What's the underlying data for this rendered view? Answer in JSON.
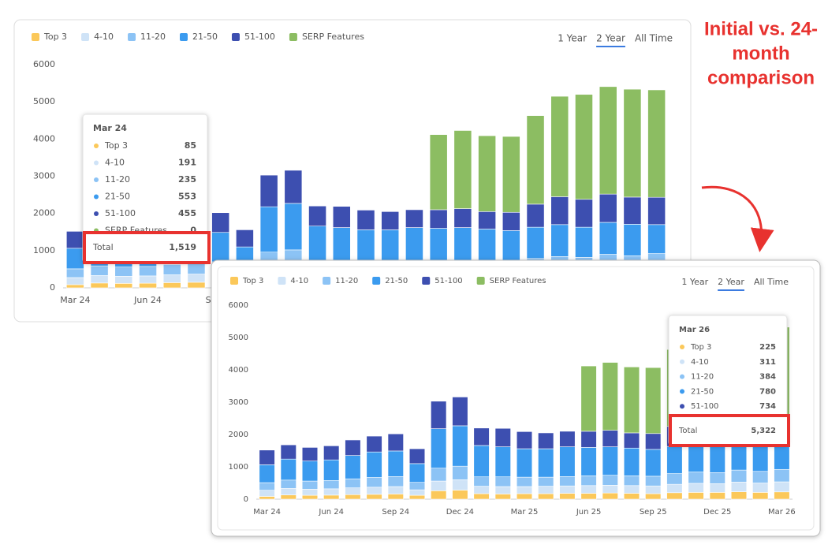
{
  "annotation": {
    "lines": [
      "Initial vs. 24-",
      "month",
      "comparison"
    ]
  },
  "chart_data": [
    {
      "type": "stacked-bar",
      "range_options": [
        "1 Year",
        "2 Year",
        "All Time"
      ],
      "selected_range": "2 Year",
      "categories": [
        "Mar 24",
        null,
        null,
        "Jun 24",
        null,
        null,
        "Sep 24",
        null,
        null,
        "Dec 24",
        null,
        null,
        "Mar 25",
        null,
        null,
        "Jun 25",
        null,
        null,
        "Sep 25",
        null,
        null,
        "Dec 25",
        null,
        null,
        "Mar 26"
      ],
      "series": [
        {
          "name": "Top 3",
          "color": "#fbc85a",
          "values": [
            85,
            130,
            120,
            125,
            140,
            150,
            160,
            120,
            260,
            280,
            170,
            160,
            170,
            170,
            180,
            180,
            190,
            180,
            170,
            200,
            210,
            210,
            230,
            210,
            225
          ]
        },
        {
          "name": "4-10",
          "color": "#cfe3f7",
          "values": [
            191,
            200,
            190,
            195,
            210,
            220,
            230,
            170,
            300,
            320,
            230,
            230,
            220,
            230,
            230,
            240,
            240,
            240,
            240,
            260,
            280,
            270,
            300,
            290,
            311
          ]
        },
        {
          "name": "11-20",
          "color": "#8cc3f5",
          "values": [
            235,
            260,
            250,
            255,
            280,
            300,
            310,
            230,
            400,
            420,
            290,
            300,
            290,
            280,
            290,
            300,
            310,
            300,
            300,
            330,
            350,
            340,
            370,
            360,
            384
          ]
        },
        {
          "name": "21-50",
          "color": "#3b9bef",
          "values": [
            553,
            650,
            620,
            640,
            720,
            790,
            790,
            580,
            1220,
            1250,
            970,
            930,
            880,
            880,
            920,
            880,
            880,
            860,
            830,
            840,
            860,
            810,
            860,
            850,
            780
          ]
        },
        {
          "name": "51-100",
          "color": "#3d4fb0",
          "values": [
            455,
            440,
            420,
            435,
            480,
            490,
            530,
            460,
            850,
            890,
            540,
            570,
            530,
            490,
            480,
            500,
            510,
            470,
            490,
            620,
            750,
            750,
            760,
            730,
            734
          ]
        },
        {
          "name": "SERP Features",
          "color": "#8cbd62",
          "values": [
            0,
            0,
            0,
            0,
            0,
            0,
            0,
            0,
            0,
            0,
            0,
            0,
            0,
            0,
            0,
            2020,
            2100,
            2040,
            2040,
            2380,
            2700,
            2820,
            2890,
            2900,
            2888
          ]
        }
      ],
      "ylim": [
        0,
        6000
      ],
      "yticks": [
        0,
        1000,
        2000,
        3000,
        4000,
        5000,
        6000
      ],
      "grid": false,
      "tooltip": {
        "category": "Mar 24",
        "total_label": "Total",
        "total": {
          "value": 1519,
          "label": "1,519"
        }
      }
    },
    {
      "type": "stacked-bar",
      "range_options": [
        "1 Year",
        "2 Year",
        "All Time"
      ],
      "selected_range": "2 Year",
      "categories": [
        "Mar 24",
        null,
        null,
        "Jun 24",
        null,
        null,
        "Sep 24",
        null,
        null,
        "Dec 24",
        null,
        null,
        "Mar 25",
        null,
        null,
        "Jun 25",
        null,
        null,
        "Sep 25",
        null,
        null,
        "Dec 25",
        null,
        null,
        "Mar 26"
      ],
      "series": [
        {
          "name": "Top 3",
          "color": "#fbc85a",
          "values": [
            85,
            130,
            120,
            125,
            140,
            150,
            160,
            120,
            260,
            280,
            170,
            160,
            170,
            170,
            180,
            180,
            190,
            180,
            170,
            200,
            210,
            210,
            230,
            210,
            225
          ]
        },
        {
          "name": "4-10",
          "color": "#cfe3f7",
          "values": [
            191,
            200,
            190,
            195,
            210,
            220,
            230,
            170,
            300,
            320,
            230,
            230,
            220,
            230,
            230,
            240,
            240,
            240,
            240,
            260,
            280,
            270,
            300,
            290,
            311
          ]
        },
        {
          "name": "11-20",
          "color": "#8cc3f5",
          "values": [
            235,
            260,
            250,
            255,
            280,
            300,
            310,
            230,
            400,
            420,
            290,
            300,
            290,
            280,
            290,
            300,
            310,
            300,
            300,
            330,
            350,
            340,
            370,
            360,
            384
          ]
        },
        {
          "name": "21-50",
          "color": "#3b9bef",
          "values": [
            553,
            650,
            620,
            640,
            720,
            790,
            790,
            580,
            1220,
            1250,
            970,
            930,
            880,
            880,
            920,
            880,
            880,
            860,
            830,
            840,
            860,
            810,
            860,
            850,
            780
          ]
        },
        {
          "name": "51-100",
          "color": "#3d4fb0",
          "values": [
            455,
            440,
            420,
            435,
            480,
            490,
            530,
            460,
            850,
            890,
            540,
            570,
            530,
            490,
            480,
            500,
            510,
            470,
            490,
            620,
            750,
            750,
            760,
            730,
            734
          ]
        },
        {
          "name": "SERP Features",
          "color": "#8cbd62",
          "values": [
            0,
            0,
            0,
            0,
            0,
            0,
            0,
            0,
            0,
            0,
            0,
            0,
            0,
            0,
            0,
            2020,
            2100,
            2040,
            2040,
            2380,
            2700,
            2820,
            2890,
            2900,
            2888
          ]
        }
      ],
      "ylim": [
        0,
        6000
      ],
      "yticks": [
        0,
        1000,
        2000,
        3000,
        4000,
        5000,
        6000
      ],
      "grid": false,
      "tooltip": {
        "category": "Mar 26",
        "total_label": "Total",
        "total": {
          "value": 5322,
          "label": "5,322"
        }
      }
    }
  ]
}
